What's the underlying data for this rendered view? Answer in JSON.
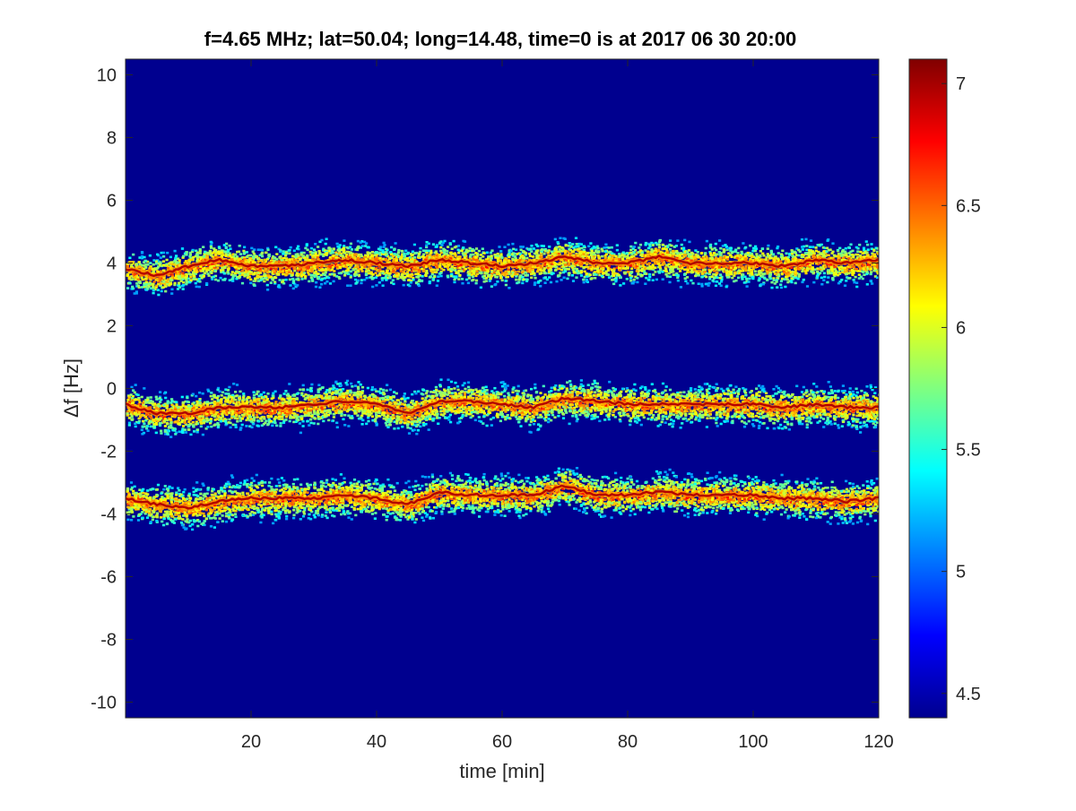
{
  "chart_data": {
    "type": "heatmap",
    "title": "f=4.65 MHz;  lat=50.04; long=14.48, time=0 is at 2017 06 30 20:00",
    "xlabel": "time [min]",
    "ylabel": "Δf [Hz]",
    "xlim": [
      0,
      120
    ],
    "ylim": [
      -10.5,
      10.5
    ],
    "xticks": [
      20,
      40,
      60,
      80,
      100,
      120
    ],
    "xtick_labels": [
      "20",
      "40",
      "60",
      "80",
      "100",
      "120"
    ],
    "yticks": [
      10,
      8,
      6,
      4,
      2,
      0,
      -2,
      -4,
      -6,
      -8,
      -10
    ],
    "ytick_labels": [
      "10",
      "8",
      "6",
      "4",
      "2",
      "0",
      "-2",
      "-4",
      "-6",
      "-8",
      "-10"
    ],
    "colormap": "jet",
    "colorbar": {
      "range": [
        4.4,
        7.1
      ],
      "ticks": [
        4.5,
        5,
        5.5,
        6,
        6.5,
        7
      ],
      "tick_labels": [
        "4.5",
        "5",
        "5.5",
        "6",
        "6.5",
        "7"
      ]
    },
    "background_color": "#00008f",
    "series": [
      {
        "time": [
          0,
          5,
          10,
          15,
          20,
          25,
          30,
          35,
          40,
          45,
          50,
          55,
          60,
          65,
          70,
          75,
          80,
          85,
          90,
          95,
          100,
          105,
          110,
          115,
          120
        ],
        "df": [
          3.8,
          3.6,
          3.9,
          4.1,
          3.9,
          3.9,
          4.0,
          4.1,
          4.0,
          3.9,
          4.1,
          4.0,
          3.9,
          4.0,
          4.2,
          4.0,
          4.0,
          4.2,
          4.0,
          4.0,
          4.0,
          3.9,
          4.1,
          4.0,
          4.1
        ]
      },
      {
        "time": [
          0,
          5,
          10,
          15,
          20,
          25,
          30,
          35,
          40,
          45,
          50,
          55,
          60,
          65,
          70,
          75,
          80,
          85,
          90,
          95,
          100,
          105,
          110,
          115,
          120
        ],
        "df": [
          -0.5,
          -0.8,
          -0.8,
          -0.6,
          -0.6,
          -0.6,
          -0.5,
          -0.4,
          -0.5,
          -0.8,
          -0.4,
          -0.4,
          -0.5,
          -0.6,
          -0.3,
          -0.4,
          -0.5,
          -0.5,
          -0.5,
          -0.5,
          -0.5,
          -0.6,
          -0.5,
          -0.6,
          -0.6
        ]
      },
      {
        "time": [
          0,
          5,
          10,
          15,
          20,
          25,
          30,
          35,
          40,
          45,
          50,
          55,
          60,
          65,
          70,
          75,
          80,
          85,
          90,
          95,
          100,
          105,
          110,
          115,
          120
        ],
        "df": [
          -3.5,
          -3.7,
          -3.8,
          -3.6,
          -3.5,
          -3.5,
          -3.5,
          -3.4,
          -3.5,
          -3.7,
          -3.3,
          -3.4,
          -3.4,
          -3.4,
          -3.1,
          -3.4,
          -3.4,
          -3.3,
          -3.4,
          -3.4,
          -3.4,
          -3.5,
          -3.5,
          -3.6,
          -3.5
        ]
      }
    ]
  }
}
